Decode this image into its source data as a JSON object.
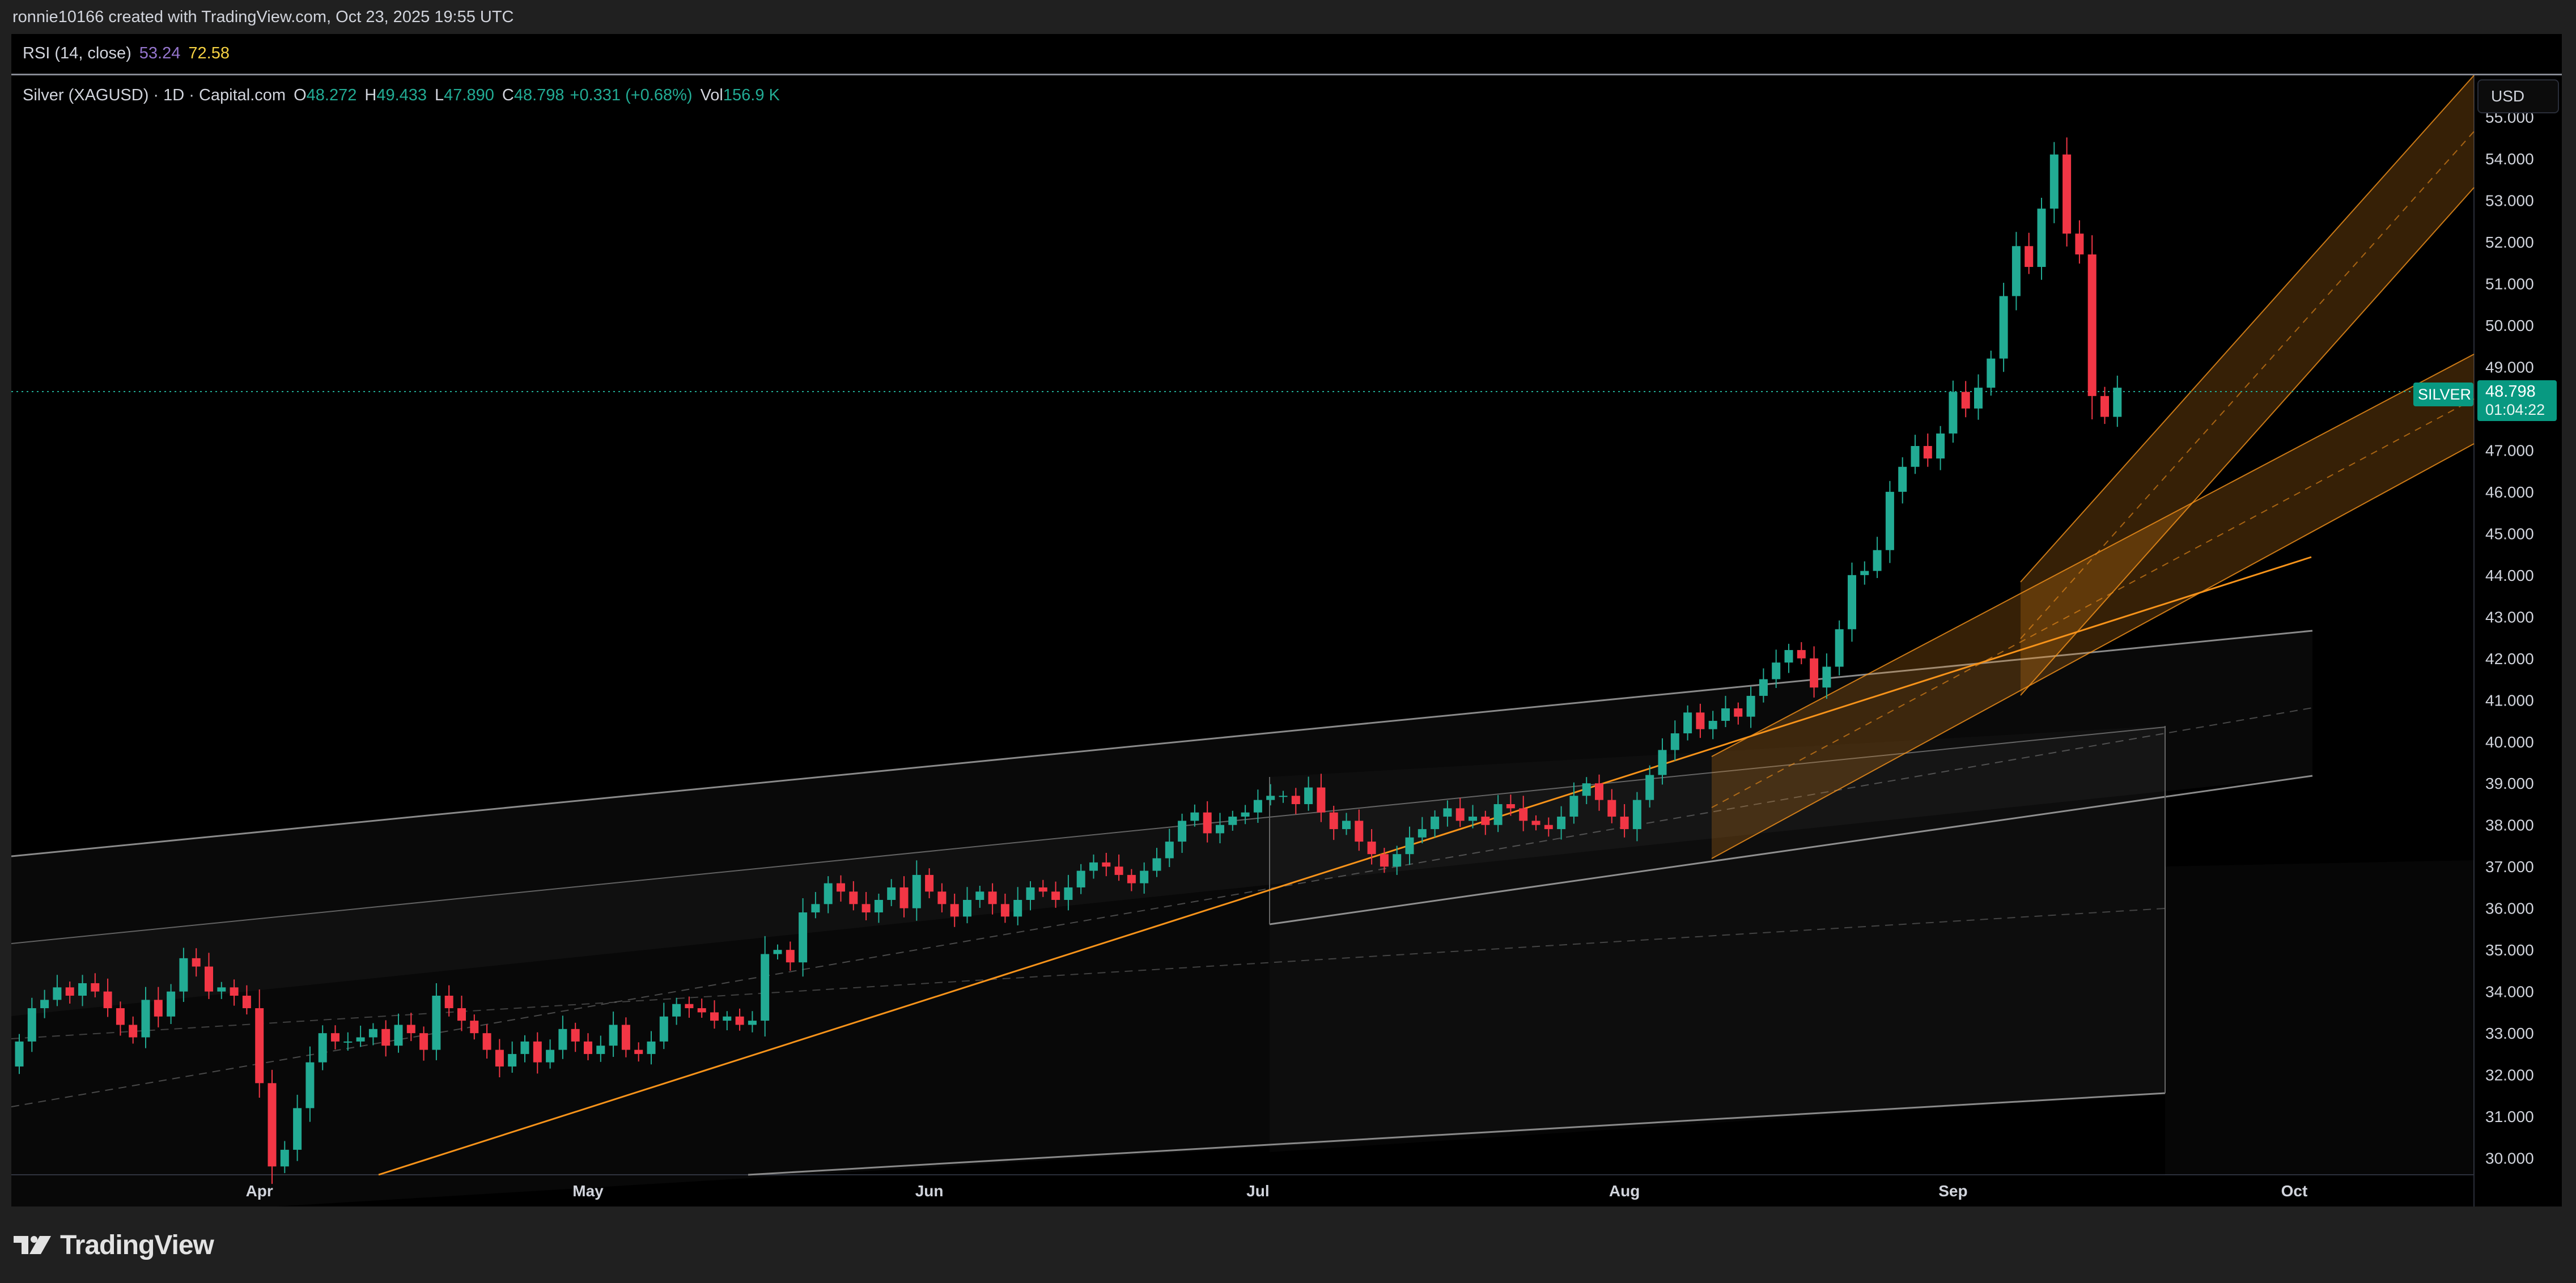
{
  "header": {
    "attribution": "ronnie10166 created with TradingView.com, Oct 23, 2025 19:55 UTC"
  },
  "rsi": {
    "label": "RSI (14, close)",
    "value1": "53.24",
    "value2": "72.58"
  },
  "legend": {
    "symbol": "Silver (XAGUSD) · 1D · Capital.com",
    "open_key": "O",
    "open": "48.272",
    "high_key": "H",
    "high": "49.433",
    "low_key": "L",
    "low": "47.890",
    "close_key": "C",
    "close": "48.798",
    "change": "+0.331 (+0.68%)",
    "vol_key": "Vol",
    "vol": "156.9 K"
  },
  "currency": "USD",
  "price_label": {
    "series": "SILVER",
    "price": "48.798",
    "countdown": "01:04:22"
  },
  "brand": "TradingView",
  "colors": {
    "up": "#22ab94",
    "down": "#f23645",
    "channel": "#f7931a",
    "background": "#000000"
  },
  "chart_data": {
    "type": "candlestick",
    "symbol": "Silver (XAGUSD)",
    "timeframe": "1D",
    "current_price": 48.798,
    "ylim": [
      29.6,
      56.0
    ],
    "y_ticks": [
      "55.000",
      "54.000",
      "53.000",
      "52.000",
      "51.000",
      "50.000",
      "49.000",
      "48.000",
      "47.000",
      "46.000",
      "45.000",
      "44.000",
      "43.000",
      "42.000",
      "41.000",
      "40.000",
      "39.000",
      "38.000",
      "37.000",
      "36.000",
      "35.000",
      "34.000",
      "33.000",
      "32.000",
      "31.000",
      "30.000"
    ],
    "x_ticks": [
      {
        "label": "Apr",
        "index": 19
      },
      {
        "label": "May",
        "index": 45
      },
      {
        "label": "Jun",
        "index": 72
      },
      {
        "label": "Jul",
        "index": 98
      },
      {
        "label": "Aug",
        "index": 127
      },
      {
        "label": "Sep",
        "index": 153
      },
      {
        "label": "Oct",
        "index": 180
      }
    ],
    "closes": [
      32.8,
      33.6,
      33.8,
      34.1,
      33.9,
      34.2,
      34.0,
      33.6,
      33.2,
      32.9,
      33.8,
      33.4,
      34.0,
      34.8,
      34.6,
      34.0,
      34.1,
      33.9,
      33.6,
      31.8,
      29.8,
      30.2,
      31.2,
      32.3,
      33.0,
      32.8,
      32.8,
      32.9,
      33.1,
      32.7,
      33.2,
      33.0,
      32.6,
      33.9,
      33.6,
      33.3,
      33.0,
      32.6,
      32.2,
      32.5,
      32.8,
      32.3,
      32.6,
      33.1,
      32.8,
      32.5,
      32.7,
      33.2,
      32.6,
      32.5,
      32.8,
      33.4,
      33.7,
      33.6,
      33.5,
      33.3,
      33.4,
      33.2,
      33.3,
      34.9,
      35.0,
      34.7,
      35.9,
      36.1,
      36.6,
      36.4,
      36.1,
      35.9,
      36.2,
      36.5,
      36.0,
      36.8,
      36.4,
      36.1,
      35.8,
      36.2,
      36.4,
      36.1,
      35.8,
      36.2,
      36.5,
      36.4,
      36.2,
      36.5,
      36.9,
      37.1,
      37.0,
      36.8,
      36.6,
      36.9,
      37.2,
      37.6,
      38.1,
      38.3,
      37.8,
      38.0,
      38.2,
      38.3,
      38.6,
      38.7,
      38.7,
      38.5,
      38.9,
      38.3,
      37.9,
      38.1,
      37.6,
      37.3,
      37.0,
      37.3,
      37.7,
      37.9,
      38.2,
      38.4,
      38.1,
      38.2,
      38.0,
      38.5,
      38.4,
      38.1,
      38.0,
      37.9,
      38.2,
      38.7,
      39.0,
      38.6,
      38.2,
      37.9,
      38.6,
      39.2,
      39.8,
      40.2,
      40.7,
      40.3,
      40.5,
      40.8,
      40.6,
      41.1,
      41.5,
      41.9,
      42.2,
      42.0,
      41.3,
      41.8,
      42.7,
      44.0,
      44.1,
      44.6,
      46.0,
      46.6,
      47.1,
      46.8,
      47.4,
      48.4,
      48.0,
      48.5,
      49.2,
      50.7,
      51.9,
      51.4,
      52.8,
      54.1,
      52.2,
      51.7,
      48.3,
      47.8,
      48.5
    ]
  }
}
